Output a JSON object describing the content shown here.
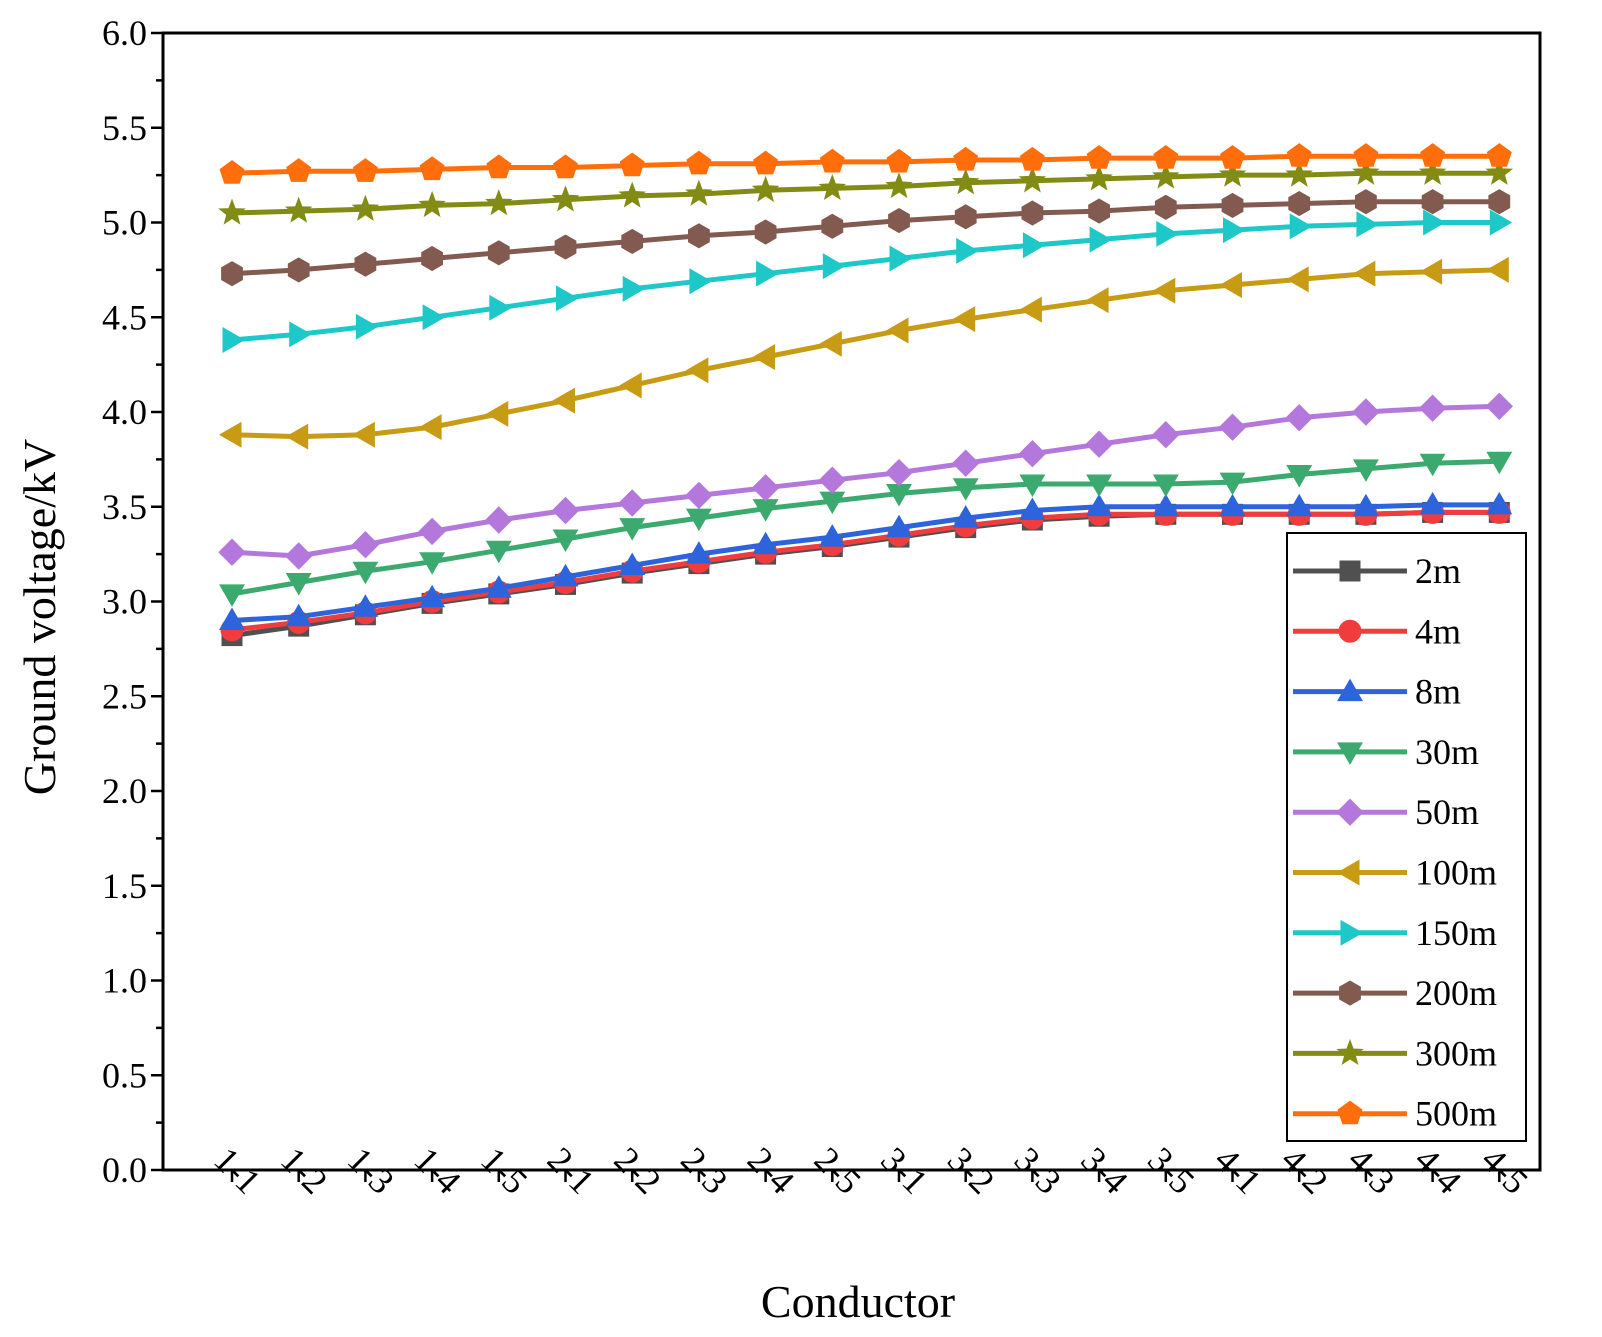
{
  "chart_data": {
    "type": "line",
    "xlabel": "Conductor",
    "ylabel": "Ground voltage/kV",
    "ylim": [
      0,
      6
    ],
    "yticks": [
      "0.0",
      "0.5",
      "1.0",
      "1.5",
      "2.0",
      "2.5",
      "3.0",
      "3.5",
      "4.0",
      "4.5",
      "5.0",
      "5.5",
      "6.0"
    ],
    "grid": false,
    "legend_position": "bottom-right",
    "categories": [
      "1-1",
      "1-2",
      "1-3",
      "1-4",
      "1-5",
      "2-1",
      "2-2",
      "2-3",
      "2-4",
      "2-5",
      "3-1",
      "3-2",
      "3-3",
      "3-4",
      "3-5",
      "4-1",
      "4-2",
      "4-3",
      "4-4",
      "4-5"
    ],
    "series": [
      {
        "name": "2m",
        "color": "#505050",
        "marker": "square",
        "values": [
          2.82,
          2.87,
          2.93,
          2.99,
          3.04,
          3.09,
          3.15,
          3.2,
          3.25,
          3.29,
          3.34,
          3.39,
          3.43,
          3.45,
          3.46,
          3.46,
          3.46,
          3.46,
          3.47,
          3.47
        ]
      },
      {
        "name": "4m",
        "color": "#f03c3c",
        "marker": "circle",
        "values": [
          2.85,
          2.89,
          2.94,
          3.0,
          3.05,
          3.1,
          3.16,
          3.21,
          3.26,
          3.3,
          3.35,
          3.4,
          3.44,
          3.46,
          3.46,
          3.46,
          3.46,
          3.46,
          3.47,
          3.47
        ]
      },
      {
        "name": "8m",
        "color": "#2d64dc",
        "marker": "triangle-up",
        "values": [
          2.9,
          2.92,
          2.97,
          3.02,
          3.07,
          3.13,
          3.19,
          3.25,
          3.3,
          3.34,
          3.39,
          3.44,
          3.48,
          3.5,
          3.5,
          3.5,
          3.5,
          3.5,
          3.51,
          3.51
        ]
      },
      {
        "name": "30m",
        "color": "#3caa6e",
        "marker": "triangle-down",
        "values": [
          3.04,
          3.1,
          3.16,
          3.21,
          3.27,
          3.33,
          3.39,
          3.44,
          3.49,
          3.53,
          3.57,
          3.6,
          3.62,
          3.62,
          3.62,
          3.63,
          3.67,
          3.7,
          3.73,
          3.74
        ]
      },
      {
        "name": "50m",
        "color": "#b478dc",
        "marker": "diamond",
        "values": [
          3.26,
          3.24,
          3.3,
          3.37,
          3.43,
          3.48,
          3.52,
          3.56,
          3.6,
          3.64,
          3.68,
          3.73,
          3.78,
          3.83,
          3.88,
          3.92,
          3.97,
          4.0,
          4.02,
          4.03
        ]
      },
      {
        "name": "100m",
        "color": "#c89b14",
        "marker": "triangle-left",
        "values": [
          3.88,
          3.87,
          3.88,
          3.92,
          3.99,
          4.06,
          4.14,
          4.22,
          4.29,
          4.36,
          4.43,
          4.49,
          4.54,
          4.59,
          4.64,
          4.67,
          4.7,
          4.73,
          4.74,
          4.75
        ]
      },
      {
        "name": "150m",
        "color": "#1ec8c8",
        "marker": "triangle-right",
        "values": [
          4.38,
          4.41,
          4.45,
          4.5,
          4.55,
          4.6,
          4.65,
          4.69,
          4.73,
          4.77,
          4.81,
          4.85,
          4.88,
          4.91,
          4.94,
          4.96,
          4.98,
          4.99,
          5.0,
          5.0
        ]
      },
      {
        "name": "200m",
        "color": "#825a50",
        "marker": "hexagon",
        "values": [
          4.73,
          4.75,
          4.78,
          4.81,
          4.84,
          4.87,
          4.9,
          4.93,
          4.95,
          4.98,
          5.01,
          5.03,
          5.05,
          5.06,
          5.08,
          5.09,
          5.1,
          5.11,
          5.11,
          5.11
        ]
      },
      {
        "name": "300m",
        "color": "#828c14",
        "marker": "star",
        "values": [
          5.05,
          5.06,
          5.07,
          5.09,
          5.1,
          5.12,
          5.14,
          5.15,
          5.17,
          5.18,
          5.19,
          5.21,
          5.22,
          5.23,
          5.24,
          5.25,
          5.25,
          5.26,
          5.26,
          5.26
        ]
      },
      {
        "name": "500m",
        "color": "#ff6e0a",
        "marker": "pentagon",
        "values": [
          5.26,
          5.27,
          5.27,
          5.28,
          5.29,
          5.29,
          5.3,
          5.31,
          5.31,
          5.32,
          5.32,
          5.33,
          5.33,
          5.34,
          5.34,
          5.34,
          5.35,
          5.35,
          5.35,
          5.35
        ]
      }
    ]
  }
}
